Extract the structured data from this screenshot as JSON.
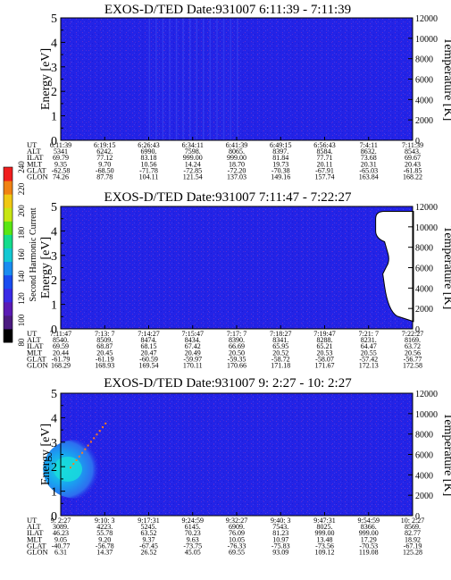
{
  "colors": {
    "background": "#2323e6",
    "speckle": "#5a2dd2",
    "noise_low": "#1a1ad9",
    "hot_core": "#19dcdc",
    "hot_mid": "#19a3f0",
    "hot_edge": "#2d6ef0",
    "stripe_orange": "#ff7a1f",
    "blank": "#ffffff",
    "colorbar": [
      "#000000",
      "#4b1a80",
      "#5a1ab4",
      "#3a2ae6",
      "#1a4cf0",
      "#1a8cf0",
      "#14c8d2",
      "#14dc8c",
      "#5ae614",
      "#c8e614",
      "#f0c814",
      "#f08214",
      "#f01e1e"
    ]
  },
  "colorbar": {
    "label": "Second Harmonic Current",
    "ticks": [
      "80",
      "100",
      "120",
      "140",
      "160",
      "180",
      "200",
      "220",
      "240"
    ]
  },
  "panels": [
    {
      "title": "EXOS-D/TED   Date:931007   6:11:39 - 7:11:39",
      "ylabel": "Energy [eV]",
      "y2label": "Temperature [K]",
      "yticks": [
        "0",
        "1",
        "2",
        "3",
        "4",
        "5"
      ],
      "y2ticks": [
        "0",
        "2000",
        "4000",
        "6000",
        "8000",
        "10000",
        "12000"
      ],
      "table_labels": [
        "UT",
        "ALT",
        "ILAT",
        "MLT",
        "GLAT",
        "GLON"
      ],
      "table_columns": [
        [
          "6:11:39",
          "5341",
          "69.79",
          "9.35",
          "-62.58",
          "74.26"
        ],
        [
          "6:19:15",
          "6242.",
          "77.12",
          "9.70",
          "-68.50",
          "87.78"
        ],
        [
          "6:26:43",
          "6990.",
          "83.18",
          "10.56",
          "-71.78",
          "104.11"
        ],
        [
          "6:34:11",
          "7598.",
          "999.00",
          "14.24",
          "-72.85",
          "121.54"
        ],
        [
          "6:41:39",
          "8065.",
          "999.00",
          "18.70",
          "-72.20",
          "137.03"
        ],
        [
          "6:49:15",
          "8397.",
          "81.84",
          "19.73",
          "-70.38",
          "149.16"
        ],
        [
          "6:56:43",
          "8584.",
          "77.71",
          "20.11",
          "-67.91",
          "157.74"
        ],
        [
          "7:4:11",
          "8632.",
          "73.68",
          "20.31",
          "-65.03",
          "163.84"
        ],
        [
          "7:11:39",
          "8543.",
          "69.67",
          "20.43",
          "-61.85",
          "168.22"
        ]
      ]
    },
    {
      "title": "EXOS-D/TED   Date:931007   7:11:47 - 7:22:27",
      "ylabel": "Energy [eV]",
      "y2label": "Temperature [K]",
      "yticks": [
        "0",
        "1",
        "2",
        "3",
        "4",
        "5"
      ],
      "y2ticks": [
        "0",
        "2000",
        "4000",
        "6000",
        "8000",
        "10000",
        "12000"
      ],
      "table_labels": [
        "UT",
        "ALT",
        "ILAT",
        "MLT",
        "GLAT",
        "GLON"
      ],
      "table_columns": [
        [
          "7:11:47",
          "8540.",
          "69.59",
          "20.44",
          "-61.79",
          "168.29"
        ],
        [
          "7:13: 7",
          "8509.",
          "68.87",
          "20.45",
          "-61.19",
          "168.93"
        ],
        [
          "7:14:27",
          "8474.",
          "68.15",
          "20.47",
          "-60.59",
          "169.54"
        ],
        [
          "7:15:47",
          "8434.",
          "67.42",
          "20.49",
          "-59.97",
          "170.11"
        ],
        [
          "7:17: 7",
          "8390.",
          "66.69",
          "20.50",
          "-59.35",
          "170.66"
        ],
        [
          "7:18:27",
          "8341.",
          "65.95",
          "20.52",
          "-58.72",
          "171.18"
        ],
        [
          "7:19:47",
          "8288.",
          "65.21",
          "20.53",
          "-58.07",
          "171.67"
        ],
        [
          "7:21: 7",
          "8231.",
          "64.47",
          "20.55",
          "-57.42",
          "172.13"
        ],
        [
          "7:22:27",
          "8169.",
          "63.72",
          "20.56",
          "-56.77",
          "172.58"
        ]
      ]
    },
    {
      "title": "EXOS-D/TED   Date:931007   9: 2:27 - 10: 2:27",
      "ylabel": "Energy [eV]",
      "y2label": "Temperature [K]",
      "yticks": [
        "0",
        "1",
        "2",
        "3",
        "4",
        "5"
      ],
      "y2ticks": [
        "0",
        "2000",
        "4000",
        "6000",
        "8000",
        "10000",
        "12000"
      ],
      "table_labels": [
        "UT",
        "ALT",
        "ILAT",
        "MLT",
        "GLAT",
        "GLON"
      ],
      "table_columns": [
        [
          "9: 2:27",
          "3089.",
          "46.23",
          "9.05",
          "-40.77",
          "6.31"
        ],
        [
          "9:10: 3",
          "4223.",
          "55.78",
          "9.20",
          "-56.78",
          "14.37"
        ],
        [
          "9:17:31",
          "5245.",
          "63.52",
          "9.37",
          "-67.45",
          "26.52"
        ],
        [
          "9:24:59",
          "6145.",
          "70.23",
          "9.63",
          "-73.75",
          "45.05"
        ],
        [
          "9:32:27",
          "6909.",
          "76.09",
          "10.05",
          "-76.33",
          "69.55"
        ],
        [
          "9:40: 3",
          "7543.",
          "81.23",
          "10.97",
          "-75.83",
          "93.09"
        ],
        [
          "9:47:31",
          "8025.",
          "999.00",
          "13.48",
          "-73.56",
          "109.12"
        ],
        [
          "9:54:59",
          "8366.",
          "999.00",
          "17.29",
          "-70.53",
          "119.08"
        ],
        [
          "10: 2:27",
          "8569.",
          "82.77",
          "18.92",
          "-67.19",
          "125.28"
        ]
      ]
    }
  ],
  "chart_data": [
    {
      "type": "heatmap",
      "title": "EXOS-D/TED   Date:931007   6:11:39 - 7:11:39",
      "ylabel": "Energy [eV]",
      "y2label": "Temperature [K]",
      "ylim": [
        0,
        5
      ],
      "y2lim": [
        0,
        12000
      ],
      "x": [
        "6:11:39",
        "6:19:15",
        "6:26:43",
        "6:34:11",
        "6:41:39",
        "6:49:15",
        "6:56:43",
        "7:4:11",
        "7:11:39"
      ],
      "colorbar_label": "Second Harmonic Current",
      "colorbar_range": [
        80,
        240
      ],
      "features": [
        {
          "kind": "uniform",
          "value": 140
        },
        {
          "kind": "vertical-streaks",
          "x_range": [
            "6:26:43",
            "6:41:39"
          ],
          "value": 150
        }
      ]
    },
    {
      "type": "heatmap",
      "title": "EXOS-D/TED   Date:931007   7:11:47 - 7:22:27",
      "ylabel": "Energy [eV]",
      "y2label": "Temperature [K]",
      "ylim": [
        0,
        5
      ],
      "y2lim": [
        0,
        12000
      ],
      "x": [
        "7:11:47",
        "7:13: 7",
        "7:14:27",
        "7:15:47",
        "7:17: 7",
        "7:18:27",
        "7:19:47",
        "7:21: 7",
        "7:22:27"
      ],
      "colorbar_label": "Second Harmonic Current",
      "colorbar_range": [
        80,
        240
      ],
      "features": [
        {
          "kind": "uniform",
          "value": 140
        },
        {
          "kind": "data-gap",
          "x_range": [
            "7:21:7",
            "7:22:27"
          ],
          "y_range": [
            0.3,
            4.8
          ]
        }
      ]
    },
    {
      "type": "heatmap",
      "title": "EXOS-D/TED   Date:931007   9: 2:27 - 10: 2:27",
      "ylabel": "Energy [eV]",
      "y2label": "Temperature [K]",
      "ylim": [
        0,
        5
      ],
      "y2lim": [
        0,
        12000
      ],
      "x": [
        "9: 2:27",
        "9:10: 3",
        "9:17:31",
        "9:24:59",
        "9:32:27",
        "9:40: 3",
        "9:47:31",
        "9:54:59",
        "10: 2:27"
      ],
      "colorbar_label": "Second Harmonic Current",
      "colorbar_range": [
        80,
        240
      ],
      "features": [
        {
          "kind": "uniform",
          "value": 140
        },
        {
          "kind": "hot-blob",
          "x_range": [
            "9: 2:27",
            "9:10: 3"
          ],
          "y_range": [
            1.0,
            2.8
          ],
          "value": 175
        },
        {
          "kind": "diagonal-stripe",
          "from": [
            "9: 2:27",
            2.0
          ],
          "to": [
            "9:10: 3",
            3.8
          ],
          "value": 225
        }
      ]
    }
  ]
}
